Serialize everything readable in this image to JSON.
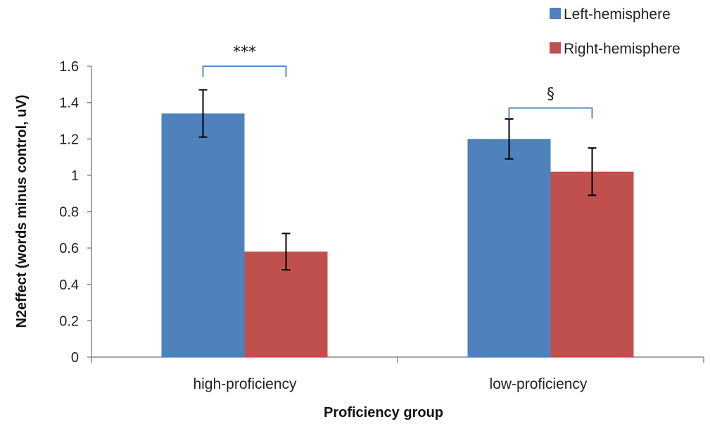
{
  "chart_data": {
    "type": "bar",
    "categories": [
      "high-proficiency",
      "low-proficiency"
    ],
    "series": [
      {
        "name": "Left-hemisphere",
        "values": [
          1.34,
          1.2
        ],
        "error": [
          0.13,
          0.11
        ],
        "color": "#4F81BD"
      },
      {
        "name": "Right-hemisphere",
        "values": [
          0.58,
          1.02
        ],
        "error": [
          0.1,
          0.13
        ],
        "color": "#C0504D"
      }
    ],
    "xlabel": "Proficiency group",
    "ylabel": "N2effect (words minus control, uV)",
    "ylim": [
      0,
      1.6
    ],
    "yticks": [
      0,
      0.2,
      0.4,
      0.6,
      0.8,
      1,
      1.2,
      1.4,
      1.6
    ],
    "legend_position": "top-right",
    "grid": false,
    "significance": [
      {
        "category": "high-proficiency",
        "label": "***",
        "bracket_level": 1.6
      },
      {
        "category": "low-proficiency",
        "label": "§",
        "bracket_level": 1.37
      }
    ]
  }
}
